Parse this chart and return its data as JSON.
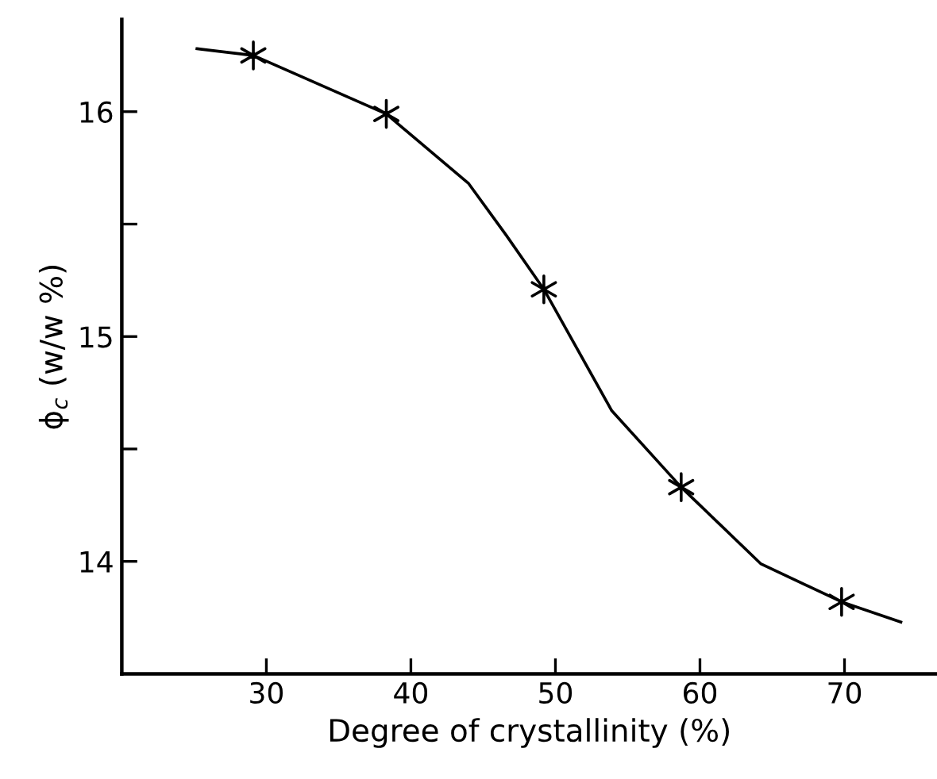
{
  "chart_data": {
    "type": "line",
    "xlabel": "Degree of crystallinity (%)",
    "ylabel": "ϕ$_{c}$ (w/w %)",
    "xlim": [
      20,
      76.4
    ],
    "ylim": [
      13.5,
      16.41
    ],
    "xticks": [
      30,
      40,
      50,
      60,
      70
    ],
    "yticks": [
      14,
      {
        "value": 14.5,
        "label": null
      },
      15,
      {
        "value": 15.5,
        "label": null
      },
      16
    ],
    "grid": false,
    "legend": false,
    "series": [
      {
        "color": "#000000",
        "marker": "none",
        "line_style": "solid",
        "x": [
          25.2,
          29.1,
          38.3,
          44.0,
          46.6,
          49.2,
          53.9,
          58.7,
          64.2,
          69.8,
          73.9
        ],
        "values": [
          16.28,
          16.25,
          15.99,
          15.68,
          15.45,
          15.21,
          14.67,
          14.33,
          13.99,
          13.82,
          13.73
        ]
      },
      {
        "type": "scatter",
        "color": "#000000",
        "marker": "cross",
        "x": [
          29.1,
          38.3,
          49.2,
          58.7,
          69.8
        ],
        "values": [
          16.25,
          15.99,
          15.21,
          14.33,
          13.82
        ]
      }
    ]
  }
}
